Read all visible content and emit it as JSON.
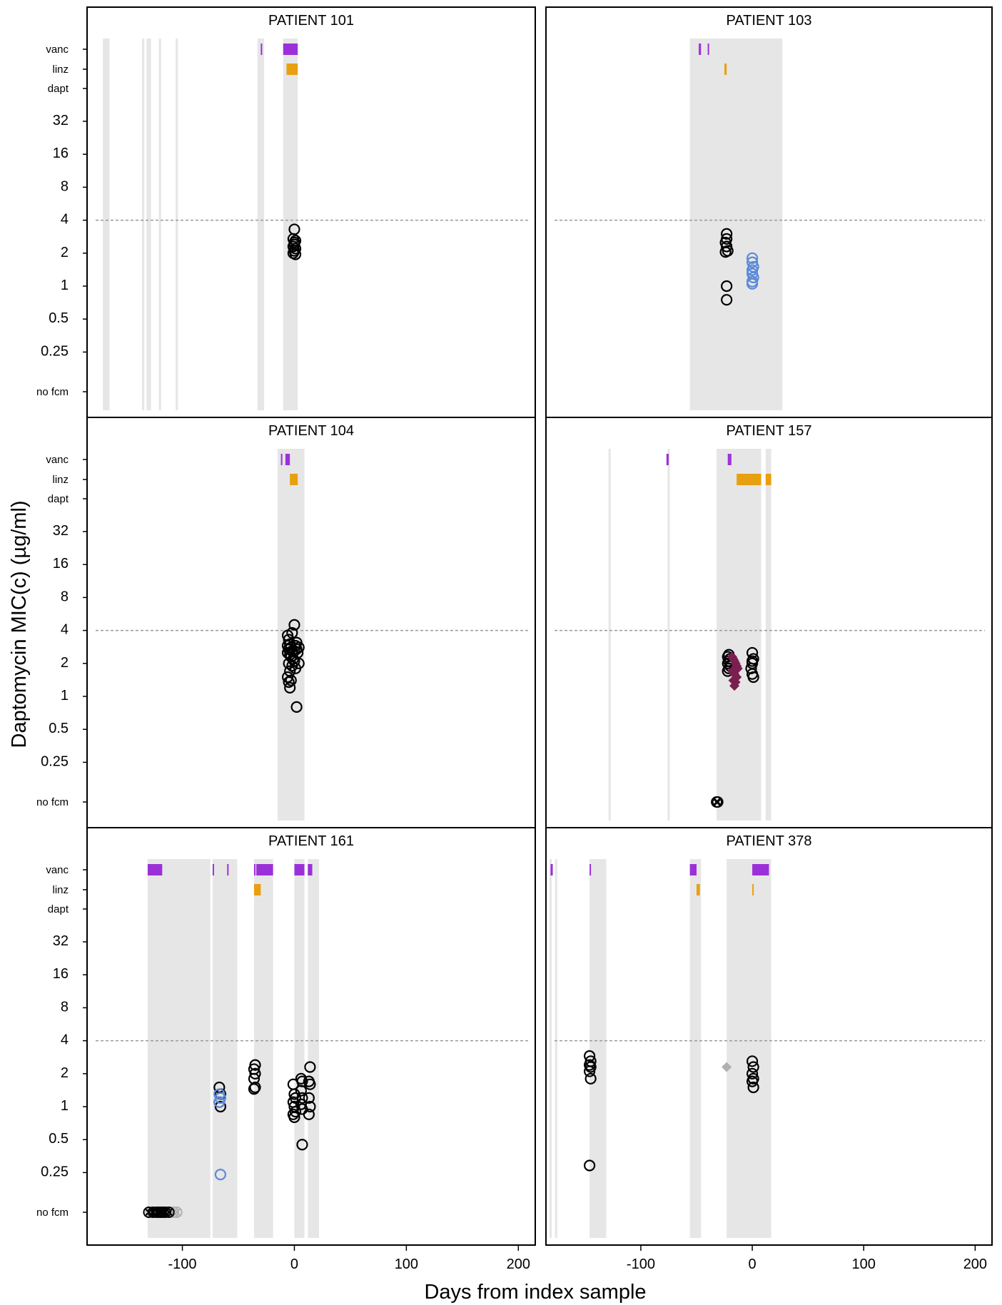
{
  "figure": {
    "ylabel": "Daptomycin MIC(c) (µg/ml)",
    "xlabel": "Days from index sample",
    "x_ticks": [
      "-100",
      "0",
      "100",
      "200"
    ],
    "x_tick_values": [
      -100,
      0,
      100,
      200
    ],
    "y_labels": [
      "vanc",
      "linz",
      "dapt",
      "32",
      "16",
      "8",
      "4",
      "2",
      "1",
      "0.5",
      "0.25",
      "no fcm"
    ],
    "y_label_values": [
      "vanc",
      "linz",
      "dapt",
      32,
      16,
      8,
      4,
      2,
      1,
      0.5,
      0.25,
      "no fcm"
    ],
    "breakpoint": 4,
    "colors": {
      "vanc": "#9b30d9",
      "linz": "#e8a010",
      "dapt": "#000000",
      "hospital_stay": "#e6e6e6",
      "black_isolate": "#000000",
      "blue_isolate": "#5b8ad8",
      "purple_diamond": "#7a1f4f",
      "grey_point": "#b0b0b0",
      "breakpoint_line": "#999999"
    }
  },
  "chart_data": [
    {
      "type": "scatter",
      "title": "PATIENT 101",
      "xlim": [
        -180,
        210
      ],
      "ylim_log2": [
        -2,
        5
      ],
      "hospital_stays": [
        [
          -171,
          -165
        ],
        [
          -136,
          -134
        ],
        [
          -132,
          -128
        ],
        [
          -121,
          -119
        ],
        [
          -106,
          -104
        ],
        [
          -33,
          -27
        ],
        [
          -10,
          3
        ]
      ],
      "vanc_periods": [
        [
          -30,
          -29
        ],
        [
          -10,
          3
        ]
      ],
      "linz_periods": [
        [
          -7,
          3
        ]
      ],
      "dapt_periods": [],
      "black_isolates": {
        "x": [
          0,
          -1,
          1,
          0,
          -1,
          1,
          0,
          -1,
          1,
          0
        ],
        "y": [
          3.3,
          2.7,
          2.6,
          2.5,
          2.3,
          2.2,
          2.1,
          2.0,
          1.95,
          2.4
        ]
      },
      "blue_isolates": {
        "x": [],
        "y": []
      },
      "purple_diamonds": {
        "x": [],
        "y": []
      },
      "grey_points": {
        "x": [],
        "y": []
      },
      "no_fcm_black": [],
      "no_fcm_grey": []
    },
    {
      "type": "scatter",
      "title": "PATIENT 103",
      "xlim": [
        -180,
        210
      ],
      "ylim_log2": [
        -2,
        5
      ],
      "hospital_stays": [
        [
          -56,
          27
        ]
      ],
      "vanc_periods": [
        [
          -48,
          -46
        ],
        [
          -40,
          -39
        ]
      ],
      "linz_periods": [
        [
          -25,
          -23
        ]
      ],
      "dapt_periods": [],
      "black_isolates": {
        "x": [
          -23,
          -23,
          -24,
          -23,
          -22,
          -24,
          -23,
          -23
        ],
        "y": [
          3.0,
          2.7,
          2.5,
          2.3,
          2.1,
          2.05,
          1.0,
          0.75
        ]
      },
      "blue_isolates": {
        "x": [
          0,
          0,
          1,
          0,
          0,
          1,
          0,
          0
        ],
        "y": [
          1.8,
          1.65,
          1.5,
          1.4,
          1.3,
          1.2,
          1.1,
          1.05
        ]
      },
      "purple_diamonds": {
        "x": [],
        "y": []
      },
      "grey_points": {
        "x": [],
        "y": []
      },
      "no_fcm_black": [],
      "no_fcm_grey": []
    },
    {
      "type": "scatter",
      "title": "PATIENT 104",
      "xlim": [
        -180,
        210
      ],
      "ylim_log2": [
        -2,
        5
      ],
      "hospital_stays": [
        [
          -15,
          9
        ]
      ],
      "vanc_periods": [
        [
          -12,
          -11
        ],
        [
          -8,
          -4
        ]
      ],
      "linz_periods": [
        [
          -4,
          3
        ]
      ],
      "dapt_periods": [],
      "black_isolates": {
        "x": [
          -6,
          -5,
          -4,
          -6,
          -3,
          -5,
          -2,
          -6,
          -4,
          -3,
          -1,
          0,
          -5,
          -2,
          1,
          2,
          3,
          -4,
          0,
          -6,
          4,
          -3,
          1,
          -5,
          2,
          -4,
          -2,
          0,
          4,
          2
        ],
        "y": [
          3.6,
          3.3,
          3.0,
          2.9,
          2.8,
          2.7,
          2.6,
          2.5,
          2.4,
          2.3,
          2.2,
          2.1,
          2.0,
          1.9,
          1.8,
          2.7,
          2.5,
          1.7,
          2.6,
          1.5,
          2.8,
          1.4,
          2.9,
          1.35,
          3.1,
          1.2,
          3.8,
          4.5,
          2.0,
          0.8
        ]
      },
      "blue_isolates": {
        "x": [],
        "y": []
      },
      "purple_diamonds": {
        "x": [],
        "y": []
      },
      "grey_points": {
        "x": [],
        "y": []
      },
      "no_fcm_black": [],
      "no_fcm_grey": []
    },
    {
      "type": "scatter",
      "title": "PATIENT 157",
      "xlim": [
        -180,
        210
      ],
      "ylim_log2": [
        -2,
        5
      ],
      "hospital_stays": [
        [
          -129,
          -127
        ],
        [
          -76,
          -74
        ],
        [
          -32,
          8
        ],
        [
          12,
          17
        ]
      ],
      "vanc_periods": [
        [
          -77,
          -75
        ],
        [
          -22,
          -20
        ],
        [
          -20,
          -19
        ]
      ],
      "linz_periods": [
        [
          -14,
          8
        ],
        [
          12,
          17
        ]
      ],
      "dapt_periods": [],
      "black_isolates": {
        "x": [
          -21,
          -22,
          -20,
          -21,
          -22,
          -20,
          -21,
          -22,
          0,
          1,
          0,
          -1,
          0,
          1,
          0
        ],
        "y": [
          2.4,
          2.3,
          2.2,
          2.1,
          2.0,
          1.9,
          1.8,
          1.7,
          2.5,
          2.2,
          2.0,
          1.8,
          1.6,
          1.5,
          2.1
        ]
      },
      "blue_isolates": {
        "x": [],
        "y": []
      },
      "purple_diamonds": {
        "x": [
          -18,
          -17,
          -16,
          -15,
          -14,
          -13,
          -18,
          -16,
          -14,
          -17,
          -15,
          -16
        ],
        "y": [
          2.3,
          2.2,
          2.1,
          2.0,
          1.9,
          1.8,
          1.7,
          1.6,
          1.5,
          1.4,
          1.35,
          1.25
        ]
      },
      "grey_points": {
        "x": [],
        "y": []
      },
      "no_fcm_black": [
        -32,
        -31
      ],
      "no_fcm_grey": []
    },
    {
      "type": "scatter",
      "title": "PATIENT 161",
      "xlim": [
        -180,
        210
      ],
      "ylim_log2": [
        -2,
        5
      ],
      "hospital_stays": [
        [
          -131,
          -75
        ],
        [
          -73,
          -51
        ],
        [
          -36,
          -19
        ],
        [
          0,
          9
        ],
        [
          12,
          22
        ]
      ],
      "vanc_periods": [
        [
          -131,
          -118
        ],
        [
          -73,
          -72
        ],
        [
          -60,
          -59
        ],
        [
          -36,
          -35
        ],
        [
          -34,
          -19
        ],
        [
          0,
          9
        ],
        [
          12,
          16
        ]
      ],
      "linz_periods": [
        [
          -36,
          -30
        ]
      ],
      "dapt_periods": [],
      "black_isolates": {
        "x": [
          -67,
          -66,
          -67,
          -66,
          -35,
          -36,
          -35,
          -36,
          -35,
          -36,
          -1,
          0,
          1,
          -1,
          0,
          1,
          -1,
          0,
          6,
          7,
          6,
          7,
          6,
          7,
          14,
          13,
          14,
          13,
          14,
          13,
          7
        ],
        "y": [
          1.5,
          1.3,
          1.1,
          1.0,
          2.4,
          2.2,
          2.0,
          1.8,
          1.5,
          1.45,
          1.6,
          1.3,
          1.2,
          1.1,
          1.0,
          0.9,
          0.85,
          0.8,
          1.8,
          1.7,
          1.4,
          1.2,
          1.05,
          0.95,
          2.3,
          1.7,
          1.6,
          1.2,
          1.0,
          0.85,
          0.45
        ]
      },
      "blue_isolates": {
        "x": [
          -67,
          -66,
          -67,
          -66
        ],
        "y": [
          1.3,
          1.2,
          1.1,
          0.24
        ]
      },
      "purple_diamonds": {
        "x": [],
        "y": []
      },
      "grey_points": {
        "x": [],
        "y": []
      },
      "no_fcm_black": [
        -130,
        -126,
        -123,
        -121,
        -119,
        -117,
        -115,
        -112
      ],
      "no_fcm_grey": [
        -128,
        -108,
        -105
      ]
    },
    {
      "type": "scatter",
      "title": "PATIENT 378",
      "xlim": [
        -180,
        210
      ],
      "ylim_log2": [
        -2,
        5
      ],
      "hospital_stays": [
        [
          -182,
          -180
        ],
        [
          -177,
          -175
        ],
        [
          -146,
          -131
        ],
        [
          -56,
          -46
        ],
        [
          -23,
          17
        ]
      ],
      "vanc_periods": [
        [
          -181,
          -179
        ],
        [
          -146,
          -145
        ],
        [
          -56,
          -50
        ],
        [
          0,
          15
        ]
      ],
      "linz_periods": [
        [
          -50,
          -47
        ],
        [
          0,
          1
        ]
      ],
      "dapt_periods": [],
      "black_isolates": {
        "x": [
          -146,
          -145,
          -146,
          -145,
          -146,
          -145,
          -146,
          0,
          1,
          0,
          1,
          0,
          1
        ],
        "y": [
          2.9,
          2.6,
          2.4,
          2.3,
          2.1,
          1.8,
          0.29,
          2.6,
          2.3,
          2.0,
          1.8,
          1.7,
          1.5
        ]
      },
      "blue_isolates": {
        "x": [],
        "y": []
      },
      "purple_diamonds": {
        "x": [],
        "y": []
      },
      "grey_points": {
        "x": [
          -23
        ],
        "y": [
          2.3
        ]
      },
      "no_fcm_black": [],
      "no_fcm_grey": []
    }
  ]
}
